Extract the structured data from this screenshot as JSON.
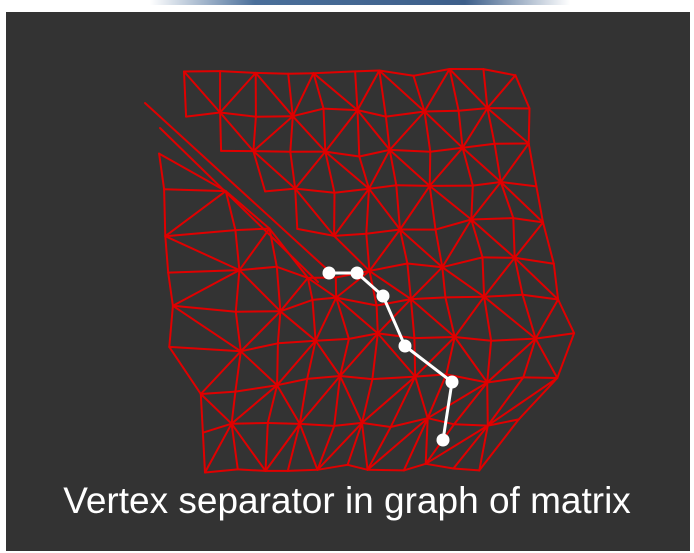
{
  "caption": "Vertex separator in graph of matrix",
  "colors": {
    "background": "#333333",
    "mesh_edges": "#e00000",
    "separator": "#ffffff"
  }
}
